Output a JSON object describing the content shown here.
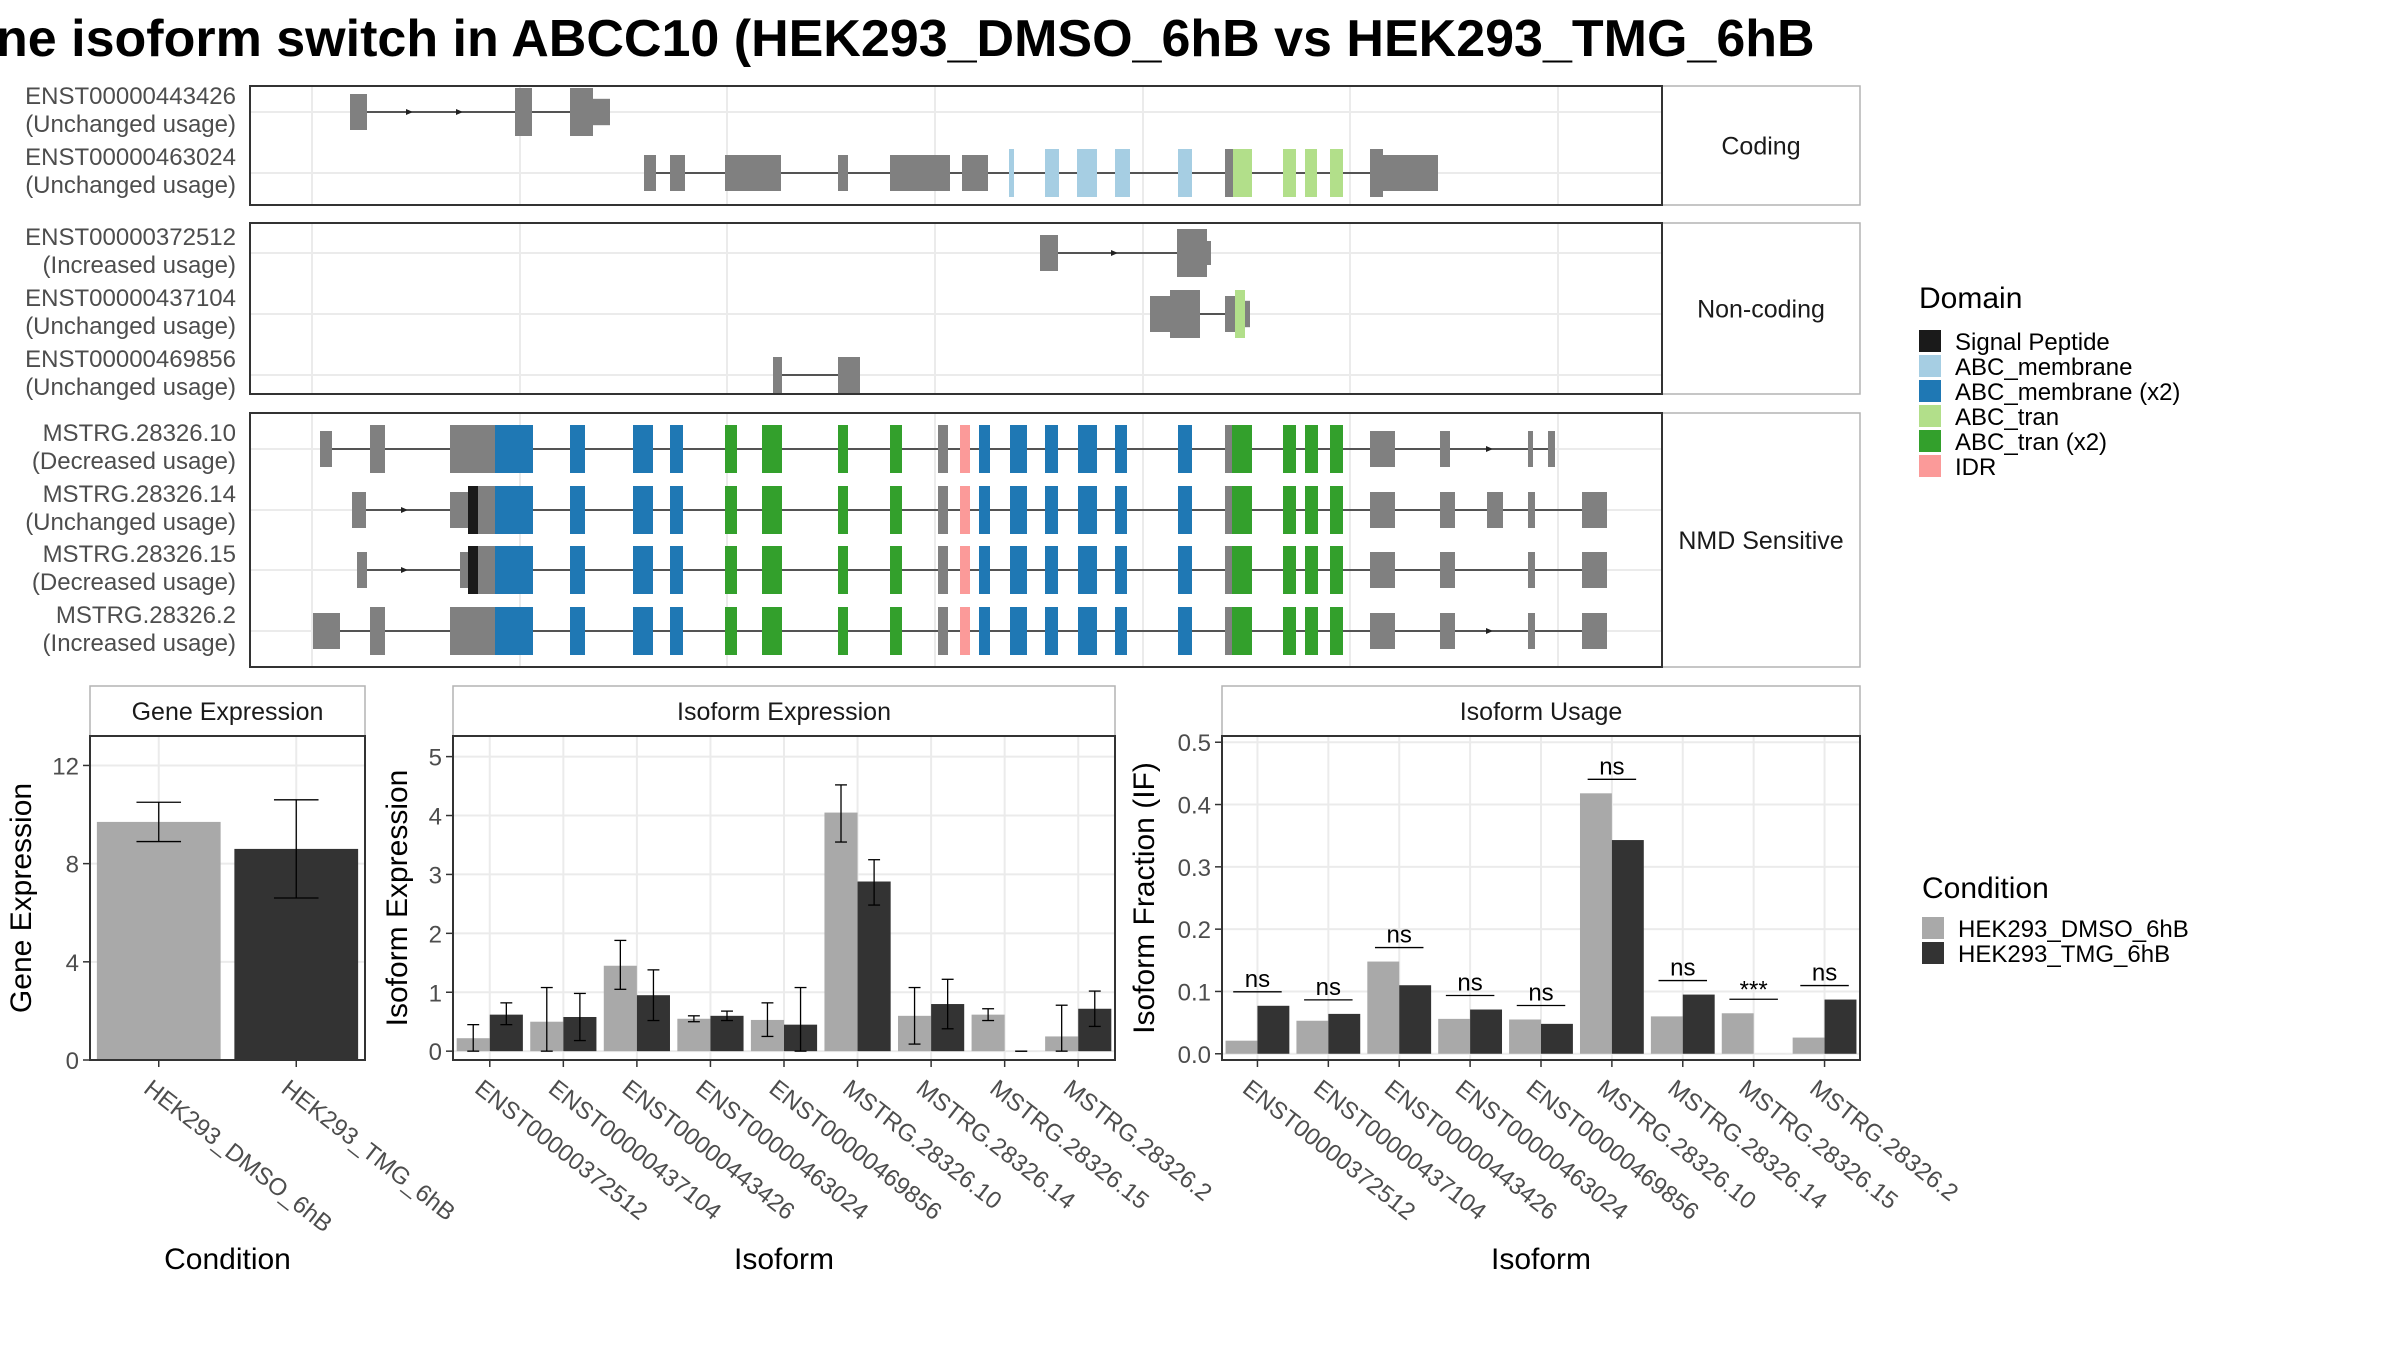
{
  "title": "ne isoform switch in ABCC10 (HEK293_DMSO_6hB vs HEK293_TMG_6hB",
  "colors": {
    "dmso": "#A9A9A9",
    "tmg": "#333333",
    "exon_default": "#808080",
    "signal_peptide": "#1a1a1a",
    "abc_membrane": "#a6cee3",
    "abc_membrane_x2": "#1f78b4",
    "abc_tran": "#b2df8a",
    "abc_tran_x2": "#33a02c",
    "idr": "#fb9a99",
    "panel_border": "#333333",
    "strip_bg": "#ffffff",
    "grid": "#ebebeb"
  },
  "structure": {
    "panels": [
      {
        "label": "Coding",
        "transcripts": [
          {
            "id": "ENST00000443426",
            "usage": "(Unchanged usage)"
          },
          {
            "id": "ENST00000463024",
            "usage": "(Unchanged usage)"
          }
        ]
      },
      {
        "label": "Non-coding",
        "transcripts": [
          {
            "id": "ENST00000372512",
            "usage": "(Increased usage)"
          },
          {
            "id": "ENST00000437104",
            "usage": "(Unchanged usage)"
          },
          {
            "id": "ENST00000469856",
            "usage": "(Unchanged usage)"
          }
        ]
      },
      {
        "label": "NMD Sensitive",
        "transcripts": [
          {
            "id": "MSTRG.28326.10",
            "usage": "(Decreased usage)"
          },
          {
            "id": "MSTRG.28326.14",
            "usage": "(Unchanged usage)"
          },
          {
            "id": "MSTRG.28326.15",
            "usage": "(Decreased usage)"
          },
          {
            "id": "MSTRG.28326.2",
            "usage": "(Increased usage)"
          }
        ]
      }
    ]
  },
  "legend_domain": {
    "title": "Domain",
    "items": [
      {
        "label": "Signal Peptide",
        "color": "#1a1a1a"
      },
      {
        "label": "ABC_membrane",
        "color": "#a6cee3"
      },
      {
        "label": "ABC_membrane (x2)",
        "color": "#1f78b4"
      },
      {
        "label": "ABC_tran",
        "color": "#b2df8a"
      },
      {
        "label": "ABC_tran (x2)",
        "color": "#33a02c"
      },
      {
        "label": "IDR",
        "color": "#fb9a99"
      }
    ]
  },
  "legend_condition": {
    "title": "Condition",
    "items": [
      {
        "label": "HEK293_DMSO_6hB",
        "color": "#A9A9A9"
      },
      {
        "label": "HEK293_TMG_6hB",
        "color": "#333333"
      }
    ]
  },
  "chart_data": [
    {
      "type": "bar",
      "title": "Gene Expression",
      "xlabel": "Condition",
      "ylabel": "Gene Expression",
      "categories": [
        "HEK293_DMSO_6hB",
        "HEK293_TMG_6hB"
      ],
      "values": [
        9.7,
        8.6
      ],
      "errors": [
        [
          8.9,
          10.5
        ],
        [
          6.6,
          10.6
        ]
      ],
      "colors": [
        "#A9A9A9",
        "#333333"
      ],
      "ylim": [
        0,
        13.2
      ],
      "yticks": [
        0,
        4,
        8,
        12
      ],
      "grid": true
    },
    {
      "type": "bar",
      "title": "Isoform Expression",
      "xlabel": "Isoform",
      "ylabel": "Isoform Expression",
      "categories": [
        "ENST00000372512",
        "ENST00000437104",
        "ENST00000443426",
        "ENST00000463024",
        "ENST00000469856",
        "MSTRG.28326.10",
        "MSTRG.28326.14",
        "MSTRG.28326.15",
        "MSTRG.28326.2"
      ],
      "series": [
        {
          "name": "HEK293_DMSO_6hB",
          "values": [
            0.22,
            0.5,
            1.45,
            0.55,
            0.53,
            4.05,
            0.6,
            0.62,
            0.25
          ],
          "errors": [
            [
              0.0,
              0.45
            ],
            [
              0.0,
              1.08
            ],
            [
              1.05,
              1.88
            ],
            [
              0.5,
              0.6
            ],
            [
              0.25,
              0.82
            ],
            [
              3.55,
              4.52
            ],
            [
              0.12,
              1.08
            ],
            [
              0.52,
              0.72
            ],
            [
              0.0,
              0.78
            ]
          ]
        },
        {
          "name": "HEK293_TMG_6hB",
          "values": [
            0.62,
            0.58,
            0.95,
            0.6,
            0.45,
            2.88,
            0.8,
            0.0,
            0.72
          ],
          "errors": [
            [
              0.45,
              0.82
            ],
            [
              0.18,
              0.98
            ],
            [
              0.52,
              1.38
            ],
            [
              0.52,
              0.68
            ],
            [
              0.0,
              1.08
            ],
            [
              2.48,
              3.25
            ],
            [
              0.38,
              1.22
            ],
            [
              0.0,
              0.0
            ],
            [
              0.42,
              1.02
            ]
          ]
        }
      ],
      "ylim": [
        -0.15,
        5.35
      ],
      "yticks": [
        0,
        1,
        2,
        3,
        4,
        5
      ],
      "grid": true
    },
    {
      "type": "bar",
      "title": "Isoform Usage",
      "xlabel": "Isoform",
      "ylabel": "Isoform Fraction (IF)",
      "categories": [
        "ENST00000372512",
        "ENST00000437104",
        "ENST00000443426",
        "ENST00000463024",
        "ENST00000469856",
        "MSTRG.28326.10",
        "MSTRG.28326.14",
        "MSTRG.28326.15",
        "MSTRG.28326.2"
      ],
      "series": [
        {
          "name": "HEK293_DMSO_6hB",
          "values": [
            0.021,
            0.053,
            0.148,
            0.056,
            0.055,
            0.418,
            0.06,
            0.065,
            0.026
          ]
        },
        {
          "name": "HEK293_TMG_6hB",
          "values": [
            0.077,
            0.064,
            0.11,
            0.071,
            0.048,
            0.343,
            0.095,
            0.0,
            0.087
          ]
        }
      ],
      "significance": [
        "ns",
        "ns",
        "ns",
        "ns",
        "ns",
        "ns",
        "ns",
        "***",
        "ns"
      ],
      "ylim": [
        -0.01,
        0.51
      ],
      "yticks": [
        0.0,
        0.1,
        0.2,
        0.3,
        0.4,
        0.5
      ],
      "ytick_labels": [
        "0.0",
        "0.1",
        "0.2",
        "0.3",
        "0.4",
        "0.5"
      ],
      "grid": true
    }
  ]
}
